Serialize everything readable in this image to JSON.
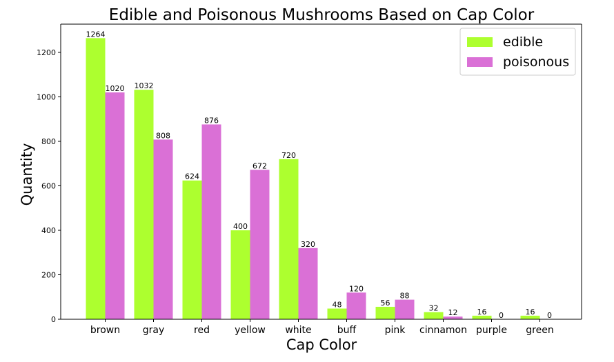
{
  "chart_data": {
    "type": "bar",
    "title": "Edible and Poisonous Mushrooms Based on Cap Color",
    "xlabel": "Cap Color",
    "ylabel": "Quantity",
    "categories": [
      "brown",
      "gray",
      "red",
      "yellow",
      "white",
      "buff",
      "pink",
      "cinnamon",
      "purple",
      "green"
    ],
    "series": [
      {
        "name": "edible",
        "color": "#adff2f",
        "values": [
          1264,
          1032,
          624,
          400,
          720,
          48,
          56,
          32,
          16,
          16
        ]
      },
      {
        "name": "poisonous",
        "color": "#da70d6",
        "values": [
          1020,
          808,
          876,
          672,
          320,
          120,
          88,
          12,
          0,
          0
        ]
      }
    ],
    "ylim": [
      0,
      1327
    ],
    "yticks": [
      0,
      200,
      400,
      600,
      800,
      1000,
      1200
    ],
    "grid": false,
    "legend_position": "top-right",
    "data_labels": true
  }
}
